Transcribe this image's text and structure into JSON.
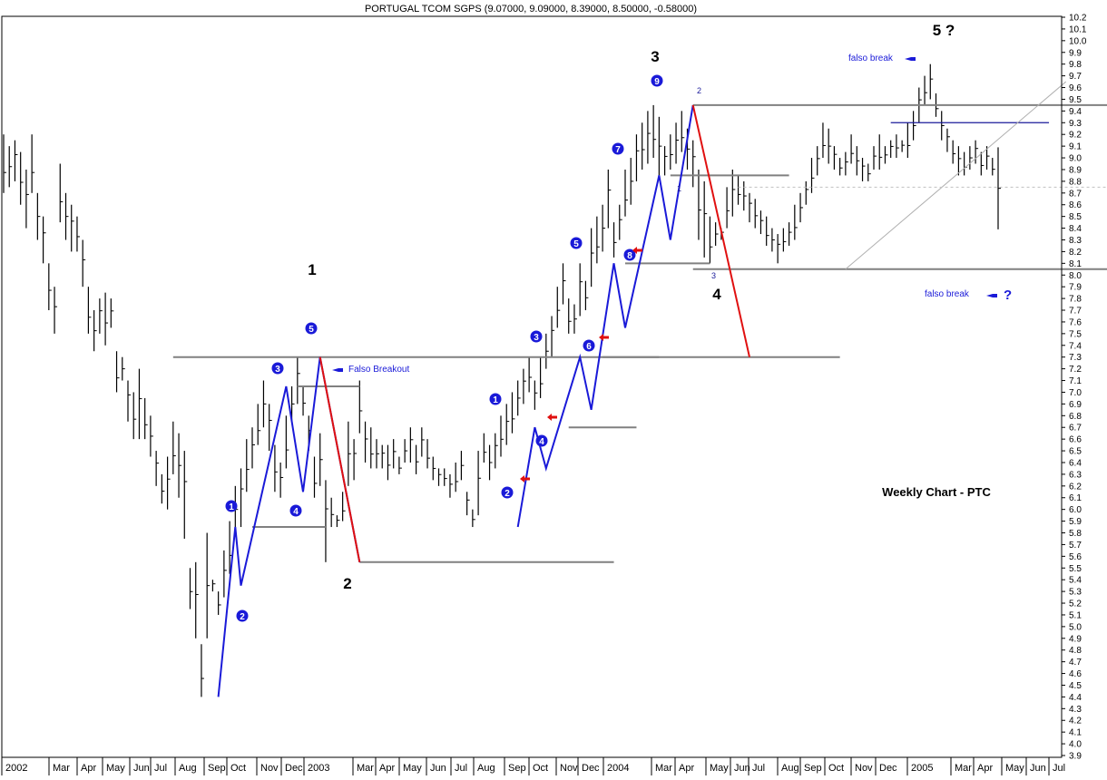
{
  "chart_data": {
    "type": "bar",
    "subtype": "ohlc",
    "title": "PORTUGAL TCOM SGPS (9.07000, 9.09000, 8.39000, 8.50000, -0.58000)",
    "caption": "Weekly Chart - PTC",
    "ylim": [
      3.9,
      10.2
    ],
    "y_ticks": [
      "3.9",
      "4.0",
      "4.1",
      "4.2",
      "4.3",
      "4.4",
      "4.5",
      "4.6",
      "4.7",
      "4.8",
      "4.9",
      "5.0",
      "5.1",
      "5.2",
      "5.3",
      "5.4",
      "5.5",
      "5.6",
      "5.7",
      "5.8",
      "5.9",
      "6.0",
      "6.1",
      "6.2",
      "6.3",
      "6.4",
      "6.5",
      "6.6",
      "6.7",
      "6.8",
      "6.9",
      "7.0",
      "7.1",
      "7.2",
      "7.3",
      "7.4",
      "7.5",
      "7.6",
      "7.7",
      "7.8",
      "7.9",
      "8.0",
      "8.1",
      "8.2",
      "8.3",
      "8.4",
      "8.5",
      "8.6",
      "8.7",
      "8.8",
      "8.9",
      "9.0",
      "9.1",
      "9.2",
      "9.3",
      "9.4",
      "9.5",
      "9.6",
      "9.7",
      "9.8",
      "9.9",
      "10.0",
      "10.1",
      "10.2"
    ],
    "x_ticks": [
      "2002",
      "Mar",
      "Apr",
      "May",
      "Jun",
      "Jul",
      "Aug",
      "Sep",
      "Oct",
      "Nov",
      "Dec",
      "2003",
      "Mar",
      "Apr",
      "May",
      "Jun",
      "Jul",
      "Aug",
      "Sep",
      "Oct",
      "Nov",
      "Dec",
      "2004",
      "Mar",
      "Apr",
      "May",
      "Jun",
      "Jul",
      "Aug",
      "Sep",
      "Oct",
      "Nov",
      "Dec",
      "2005",
      "Mar",
      "Apr",
      "May",
      "Jun",
      "Jul"
    ],
    "y_axis_side": "right",
    "grid": false,
    "price_bar_color": "#000000",
    "wave_color": "#1a1ad8",
    "correction_color": "#e01010",
    "level_color": "#808080",
    "major_wave_labels": [
      "1",
      "2",
      "3",
      "4",
      "5 ?"
    ],
    "minor_wave_labels": [
      "1",
      "2",
      "3",
      "4",
      "5",
      "1",
      "2",
      "3",
      "4",
      "5",
      "6",
      "7",
      "8",
      "9"
    ],
    "annotations": [
      "Falso Breakout",
      "falso break",
      "falso break",
      "?",
      "1",
      "2",
      "3"
    ],
    "bars": [
      [
        9.2,
        8.7
      ],
      [
        9.1,
        8.75
      ],
      [
        9.15,
        8.8
      ],
      [
        9.05,
        8.6
      ],
      [
        8.9,
        8.4
      ],
      [
        9.2,
        8.7
      ],
      [
        8.7,
        8.3
      ],
      [
        8.5,
        8.1
      ],
      [
        8.1,
        7.7
      ],
      [
        7.9,
        7.5
      ],
      [
        8.95,
        8.45
      ],
      [
        8.7,
        8.3
      ],
      [
        8.6,
        8.2
      ],
      [
        8.5,
        8.2
      ],
      [
        8.3,
        7.9
      ],
      [
        7.9,
        7.5
      ],
      [
        7.7,
        7.35
      ],
      [
        7.8,
        7.5
      ],
      [
        7.85,
        7.4
      ],
      [
        7.8,
        7.55
      ],
      [
        7.35,
        7.0
      ],
      [
        7.3,
        7.1
      ],
      [
        7.1,
        6.75
      ],
      [
        7.0,
        6.6
      ],
      [
        7.2,
        6.6
      ],
      [
        6.95,
        6.6
      ],
      [
        6.8,
        6.45
      ],
      [
        6.5,
        6.2
      ],
      [
        6.3,
        6.05
      ],
      [
        6.45,
        6.0
      ],
      [
        6.75,
        6.3
      ],
      [
        6.65,
        6.1
      ],
      [
        6.5,
        5.75
      ],
      [
        5.5,
        5.15
      ],
      [
        5.55,
        4.9
      ],
      [
        4.85,
        4.4
      ],
      [
        5.8,
        4.9
      ],
      [
        5.4,
        5.3
      ],
      [
        5.3,
        5.1
      ],
      [
        5.65,
        5.25
      ],
      [
        5.9,
        5.45
      ],
      [
        6.2,
        5.8
      ],
      [
        6.35,
        5.85
      ],
      [
        6.6,
        6.15
      ],
      [
        6.7,
        6.35
      ],
      [
        6.9,
        6.55
      ],
      [
        7.1,
        6.7
      ],
      [
        6.9,
        6.5
      ],
      [
        6.55,
        6.15
      ],
      [
        6.4,
        6.1
      ],
      [
        6.8,
        6.35
      ],
      [
        7.05,
        6.75
      ],
      [
        7.3,
        6.9
      ],
      [
        7.05,
        6.8
      ],
      [
        6.8,
        6.5
      ],
      [
        6.45,
        6.1
      ],
      [
        6.65,
        6.2
      ],
      [
        6.25,
        5.55
      ],
      [
        6.1,
        5.85
      ],
      [
        5.95,
        5.85
      ],
      [
        6.15,
        5.9
      ],
      [
        6.75,
        6.2
      ],
      [
        6.6,
        6.25
      ],
      [
        7.1,
        6.65
      ],
      [
        6.75,
        6.4
      ],
      [
        6.7,
        6.35
      ],
      [
        6.6,
        6.35
      ],
      [
        6.55,
        6.35
      ],
      [
        6.55,
        6.25
      ],
      [
        6.6,
        6.35
      ],
      [
        6.45,
        6.3
      ],
      [
        6.6,
        6.4
      ],
      [
        6.7,
        6.4
      ],
      [
        6.55,
        6.3
      ],
      [
        6.7,
        6.45
      ],
      [
        6.6,
        6.35
      ],
      [
        6.45,
        6.25
      ],
      [
        6.35,
        6.2
      ],
      [
        6.35,
        6.2
      ],
      [
        6.3,
        6.1
      ],
      [
        6.4,
        6.15
      ],
      [
        6.5,
        6.25
      ],
      [
        6.15,
        5.95
      ],
      [
        6.0,
        5.85
      ],
      [
        6.5,
        5.95
      ],
      [
        6.65,
        6.4
      ],
      [
        6.55,
        6.25
      ],
      [
        6.65,
        6.35
      ],
      [
        6.8,
        6.45
      ],
      [
        6.9,
        6.55
      ],
      [
        7.0,
        6.65
      ],
      [
        7.1,
        6.8
      ],
      [
        7.2,
        6.9
      ],
      [
        7.3,
        7.0
      ],
      [
        7.1,
        6.85
      ],
      [
        7.3,
        6.95
      ],
      [
        7.5,
        7.2
      ],
      [
        7.65,
        7.3
      ],
      [
        7.9,
        7.55
      ],
      [
        8.1,
        7.75
      ],
      [
        7.8,
        7.5
      ],
      [
        7.75,
        7.5
      ],
      [
        8.1,
        7.65
      ],
      [
        7.95,
        7.7
      ],
      [
        8.4,
        7.9
      ],
      [
        8.5,
        8.1
      ],
      [
        8.6,
        8.2
      ],
      [
        8.9,
        8.4
      ],
      [
        8.45,
        8.15
      ],
      [
        8.6,
        8.3
      ],
      [
        8.9,
        8.5
      ],
      [
        9.0,
        8.6
      ],
      [
        9.2,
        8.8
      ],
      [
        9.3,
        8.9
      ],
      [
        9.4,
        8.95
      ],
      [
        9.45,
        9.0
      ],
      [
        9.35,
        8.85
      ],
      [
        9.1,
        8.85
      ],
      [
        9.2,
        8.9
      ],
      [
        9.3,
        8.95
      ],
      [
        9.4,
        9.05
      ],
      [
        9.25,
        8.9
      ],
      [
        9.15,
        8.75
      ],
      [
        8.9,
        8.3
      ],
      [
        8.8,
        8.15
      ],
      [
        8.5,
        8.1
      ],
      [
        8.45,
        8.25
      ],
      [
        8.4,
        8.3
      ],
      [
        8.75,
        8.4
      ],
      [
        8.9,
        8.5
      ],
      [
        8.85,
        8.6
      ],
      [
        8.8,
        8.55
      ],
      [
        8.7,
        8.45
      ],
      [
        8.65,
        8.4
      ],
      [
        8.55,
        8.35
      ],
      [
        8.5,
        8.25
      ],
      [
        8.4,
        8.2
      ],
      [
        8.35,
        8.1
      ],
      [
        8.4,
        8.2
      ],
      [
        8.45,
        8.25
      ],
      [
        8.6,
        8.3
      ],
      [
        8.7,
        8.45
      ],
      [
        8.8,
        8.6
      ],
      [
        9.0,
        8.7
      ],
      [
        9.1,
        8.85
      ],
      [
        9.3,
        9.0
      ],
      [
        9.25,
        8.95
      ],
      [
        9.1,
        8.9
      ],
      [
        9.0,
        8.85
      ],
      [
        9.05,
        8.85
      ],
      [
        9.2,
        8.95
      ],
      [
        9.1,
        8.85
      ],
      [
        9.0,
        8.8
      ],
      [
        8.95,
        8.8
      ],
      [
        9.1,
        8.9
      ],
      [
        9.2,
        8.9
      ],
      [
        9.1,
        8.95
      ],
      [
        9.15,
        9.0
      ],
      [
        9.2,
        9.0
      ],
      [
        9.15,
        9.05
      ],
      [
        9.3,
        9.0
      ],
      [
        9.4,
        9.15
      ],
      [
        9.6,
        9.3
      ],
      [
        9.7,
        9.45
      ],
      [
        9.8,
        9.5
      ],
      [
        9.55,
        9.35
      ],
      [
        9.4,
        9.15
      ],
      [
        9.25,
        9.05
      ],
      [
        9.15,
        8.95
      ],
      [
        9.1,
        8.85
      ],
      [
        9.05,
        8.85
      ],
      [
        9.1,
        8.9
      ],
      [
        9.15,
        8.95
      ],
      [
        9.05,
        8.85
      ],
      [
        9.1,
        8.9
      ],
      [
        9.0,
        8.85
      ],
      [
        9.09,
        8.39
      ]
    ],
    "levels": [
      {
        "price": 7.3,
        "from": 30,
        "to": 148
      },
      {
        "price": 5.55,
        "from": 63,
        "to": 108
      },
      {
        "price": 5.85,
        "from": 44,
        "to": 57
      },
      {
        "price": 7.05,
        "from": 52,
        "to": 63
      },
      {
        "price": 6.7,
        "from": 100,
        "to": 112
      },
      {
        "price": 7.3,
        "from": 106,
        "to": 116
      },
      {
        "price": 8.1,
        "from": 110,
        "to": 125
      },
      {
        "price": 8.85,
        "from": 118,
        "to": 139
      },
      {
        "price": 9.45,
        "from": 122,
        "to": 197
      },
      {
        "price": 8.05,
        "from": 122,
        "to": 197
      },
      {
        "price": 9.3,
        "from": 157,
        "to": 185,
        "style": "blue"
      }
    ],
    "trendline": [
      [
        149,
        8.05
      ],
      [
        188,
        9.65
      ]
    ],
    "wave_path": [
      [
        38,
        4.4
      ],
      [
        41,
        5.85
      ],
      [
        42,
        5.35
      ],
      [
        50,
        7.05
      ],
      [
        53,
        6.15
      ],
      [
        56,
        7.3
      ],
      [
        63,
        5.55
      ]
    ],
    "wave_path_2": [
      [
        91,
        5.85
      ],
      [
        94,
        6.7
      ],
      [
        96,
        6.35
      ],
      [
        102,
        7.3
      ],
      [
        104,
        6.85
      ],
      [
        108,
        8.1
      ],
      [
        110,
        7.55
      ],
      [
        116,
        8.85
      ],
      [
        118,
        8.3
      ],
      [
        122,
        9.45
      ]
    ],
    "red_1": [
      [
        56,
        7.3
      ],
      [
        63,
        5.55
      ]
    ],
    "red_2": [
      [
        122,
        9.45
      ],
      [
        132,
        7.3
      ]
    ]
  }
}
